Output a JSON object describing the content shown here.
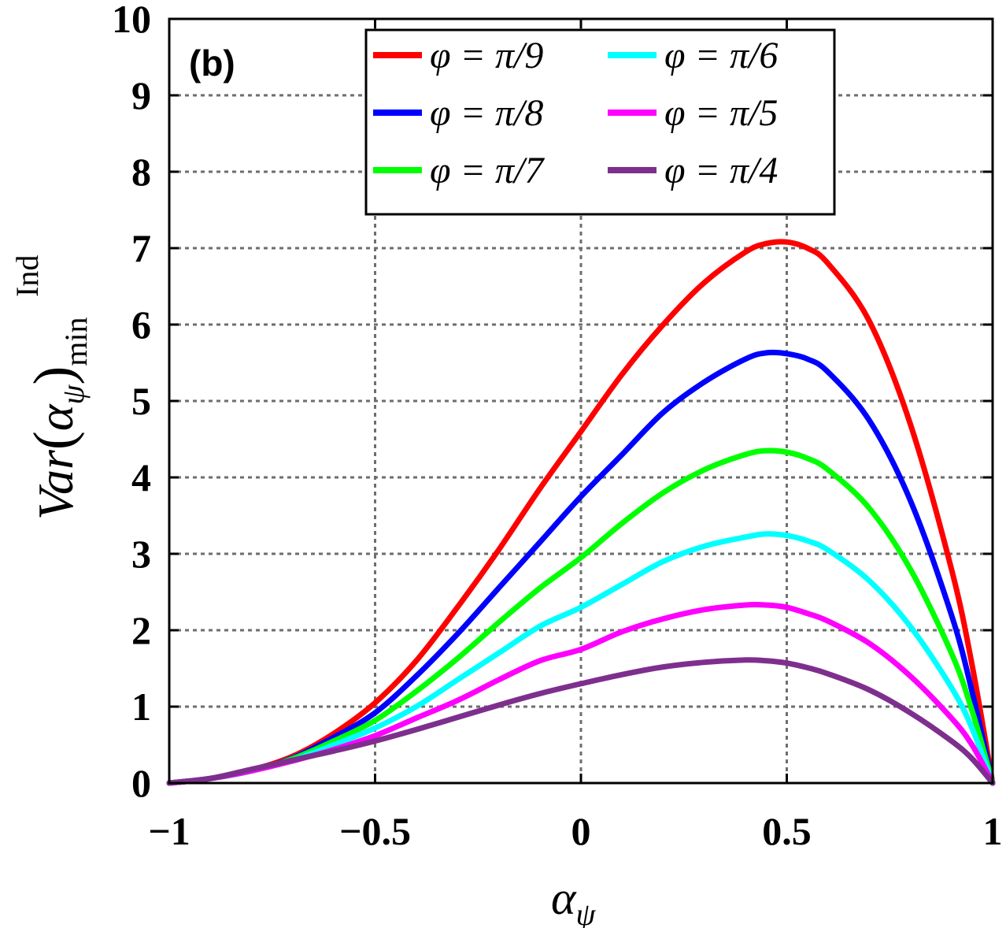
{
  "chart_data": {
    "type": "line",
    "panel_label": "(b)",
    "xlabel": "α",
    "xlabel_sub": "ψ",
    "ylabel": {
      "prefix": "Var",
      "alpha": "α",
      "alpha_sub": "ψ",
      "superscript": "Ind",
      "subscript": "min"
    },
    "xlim": [
      -1,
      1
    ],
    "ylim": [
      0,
      10
    ],
    "xticks": [
      -1,
      -0.5,
      0,
      0.5,
      1
    ],
    "xtick_labels": [
      "−1",
      "−0.5",
      "0",
      "0.5",
      "1"
    ],
    "yticks": [
      0,
      1,
      2,
      3,
      4,
      5,
      6,
      7,
      8,
      9,
      10
    ],
    "ytick_labels": [
      "0",
      "1",
      "2",
      "3",
      "4",
      "5",
      "6",
      "7",
      "8",
      "9",
      "10"
    ],
    "grid": true,
    "legend_position": "top-right",
    "x": [
      -1,
      -0.9,
      -0.8,
      -0.7,
      -0.6,
      -0.5,
      -0.4,
      -0.3,
      -0.2,
      -0.1,
      0,
      0.1,
      0.2,
      0.3,
      0.4,
      0.45,
      0.5,
      0.55,
      0.6,
      0.7,
      0.8,
      0.9,
      0.95,
      1
    ],
    "series": [
      {
        "name": "φ = π/9",
        "color": "#ff0000",
        "values": [
          0,
          0.06,
          0.17,
          0.35,
          0.65,
          1.05,
          1.6,
          2.3,
          3.05,
          3.85,
          4.6,
          5.35,
          6.0,
          6.55,
          6.95,
          7.06,
          7.08,
          7.0,
          6.8,
          6.05,
          4.7,
          2.8,
          1.55,
          0
        ]
      },
      {
        "name": "φ = π/8",
        "color": "#0000ff",
        "values": [
          0,
          0.06,
          0.16,
          0.33,
          0.6,
          0.92,
          1.4,
          1.95,
          2.55,
          3.15,
          3.75,
          4.3,
          4.85,
          5.25,
          5.55,
          5.63,
          5.62,
          5.55,
          5.38,
          4.75,
          3.7,
          2.2,
          1.2,
          0
        ]
      },
      {
        "name": "φ = π/7",
        "color": "#00ff00",
        "values": [
          0,
          0.06,
          0.16,
          0.32,
          0.55,
          0.82,
          1.2,
          1.63,
          2.1,
          2.55,
          2.95,
          3.4,
          3.8,
          4.1,
          4.3,
          4.35,
          4.33,
          4.25,
          4.1,
          3.6,
          2.8,
          1.7,
          0.95,
          0
        ]
      },
      {
        "name": "φ = π/6",
        "color": "#00ffff",
        "values": [
          0,
          0.06,
          0.16,
          0.3,
          0.5,
          0.72,
          1.0,
          1.35,
          1.7,
          2.05,
          2.3,
          2.6,
          2.9,
          3.1,
          3.22,
          3.26,
          3.24,
          3.17,
          3.05,
          2.65,
          2.05,
          1.25,
          0.72,
          0
        ]
      },
      {
        "name": "φ = π/5",
        "color": "#ff00ff",
        "values": [
          0,
          0.06,
          0.16,
          0.29,
          0.44,
          0.62,
          0.85,
          1.08,
          1.35,
          1.6,
          1.75,
          1.98,
          2.15,
          2.27,
          2.33,
          2.33,
          2.3,
          2.22,
          2.12,
          1.83,
          1.4,
          0.85,
          0.5,
          0
        ]
      },
      {
        "name": "φ = π/4",
        "color": "#7e2f8e",
        "values": [
          0,
          0.06,
          0.18,
          0.3,
          0.42,
          0.55,
          0.7,
          0.86,
          1.02,
          1.17,
          1.3,
          1.42,
          1.52,
          1.58,
          1.61,
          1.6,
          1.57,
          1.51,
          1.43,
          1.22,
          0.92,
          0.55,
          0.32,
          0
        ]
      }
    ]
  }
}
